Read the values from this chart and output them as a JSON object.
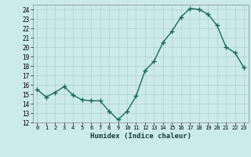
{
  "x": [
    0,
    1,
    2,
    3,
    4,
    5,
    6,
    7,
    8,
    9,
    10,
    11,
    12,
    13,
    14,
    15,
    16,
    17,
    18,
    19,
    20,
    21,
    22,
    23
  ],
  "y": [
    15.5,
    14.7,
    15.2,
    15.8,
    14.9,
    14.4,
    14.3,
    14.3,
    13.2,
    12.3,
    13.2,
    14.8,
    17.5,
    18.5,
    20.5,
    21.7,
    23.2,
    24.1,
    24.0,
    23.5,
    22.3,
    20.0,
    19.4,
    17.8
  ],
  "line_color": "#1a6b5a",
  "bg_color": "#cceaea",
  "grid_color": "#b0d0d0",
  "xlabel": "Humidex (Indice chaleur)",
  "ylim": [
    12,
    24.5
  ],
  "yticks": [
    12,
    13,
    14,
    15,
    16,
    17,
    18,
    19,
    20,
    21,
    22,
    23,
    24
  ],
  "xticks": [
    0,
    1,
    2,
    3,
    4,
    5,
    6,
    7,
    8,
    9,
    10,
    11,
    12,
    13,
    14,
    15,
    16,
    17,
    18,
    19,
    20,
    21,
    22,
    23
  ],
  "xtick_labels": [
    "0",
    "1",
    "2",
    "3",
    "4",
    "5",
    "6",
    "7",
    "8",
    "9",
    "10",
    "11",
    "12",
    "13",
    "14",
    "15",
    "16",
    "17",
    "18",
    "19",
    "20",
    "21",
    "22",
    "23"
  ],
  "marker": "+",
  "markersize": 4,
  "linewidth": 1.0
}
